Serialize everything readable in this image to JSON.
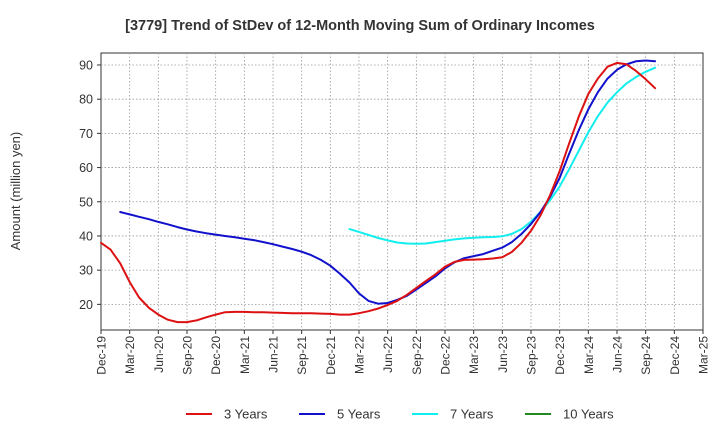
{
  "chart_data": {
    "type": "line",
    "title": "[3779]  Trend of StDev of 12-Month Moving Sum of Ordinary Incomes",
    "xlabel": "",
    "ylabel": "Amount (million yen)",
    "ylim": [
      12.5,
      93.5
    ],
    "yticks": [
      20,
      30,
      40,
      50,
      60,
      70,
      80,
      90
    ],
    "grid": true,
    "legend_position": "bottom",
    "x_categories": [
      "Dec-19",
      "Mar-20",
      "Jun-20",
      "Sep-20",
      "Dec-20",
      "Mar-21",
      "Jun-21",
      "Sep-21",
      "Dec-21",
      "Mar-22",
      "Jun-22",
      "Sep-22",
      "Dec-22",
      "Mar-23",
      "Jun-23",
      "Sep-23",
      "Dec-23",
      "Mar-24",
      "Jun-24",
      "Sep-24",
      "Dec-24",
      "Mar-25"
    ],
    "series": [
      {
        "name": "3 Years",
        "color": "#dd1111",
        "points": [
          [
            0,
            38
          ],
          [
            0.33,
            36
          ],
          [
            0.67,
            32
          ],
          [
            1,
            26.5
          ],
          [
            1.33,
            22
          ],
          [
            1.67,
            19
          ],
          [
            2,
            17
          ],
          [
            2.33,
            15.5
          ],
          [
            2.67,
            14.8
          ],
          [
            3,
            14.8
          ],
          [
            3.33,
            15.3
          ],
          [
            3.67,
            16.2
          ],
          [
            4,
            17
          ],
          [
            4.33,
            17.7
          ],
          [
            4.67,
            17.8
          ],
          [
            5,
            17.8
          ],
          [
            5.33,
            17.7
          ],
          [
            5.67,
            17.7
          ],
          [
            6,
            17.6
          ],
          [
            6.33,
            17.5
          ],
          [
            6.67,
            17.4
          ],
          [
            7,
            17.4
          ],
          [
            7.33,
            17.4
          ],
          [
            7.67,
            17.3
          ],
          [
            8,
            17.2
          ],
          [
            8.33,
            17.0
          ],
          [
            8.67,
            17.0
          ],
          [
            9,
            17.4
          ],
          [
            9.33,
            18.0
          ],
          [
            9.67,
            18.8
          ],
          [
            10,
            19.8
          ],
          [
            10.33,
            21
          ],
          [
            10.67,
            22.8
          ],
          [
            11,
            24.8
          ],
          [
            11.33,
            26.8
          ],
          [
            11.67,
            28.8
          ],
          [
            12,
            31
          ],
          [
            12.33,
            32.4
          ],
          [
            12.67,
            33
          ],
          [
            13,
            33.1
          ],
          [
            13.33,
            33.2
          ],
          [
            13.67,
            33.4
          ],
          [
            14,
            33.8
          ],
          [
            14.33,
            35.3
          ],
          [
            14.67,
            38
          ],
          [
            15,
            41.5
          ],
          [
            15.33,
            46
          ],
          [
            15.67,
            52
          ],
          [
            16,
            59
          ],
          [
            16.33,
            67
          ],
          [
            16.67,
            75
          ],
          [
            17,
            81.5
          ],
          [
            17.33,
            86
          ],
          [
            17.67,
            89.5
          ],
          [
            18,
            90.6
          ],
          [
            18.33,
            90.2
          ],
          [
            18.67,
            88.2
          ],
          [
            19,
            85.8
          ],
          [
            19.33,
            83.2
          ]
        ]
      },
      {
        "name": "5 Years",
        "color": "#1111cc",
        "points": [
          [
            0.67,
            47
          ],
          [
            1,
            46.3
          ],
          [
            1.33,
            45.6
          ],
          [
            1.67,
            44.9
          ],
          [
            2,
            44.1
          ],
          [
            2.33,
            43.4
          ],
          [
            2.67,
            42.6
          ],
          [
            3,
            41.9
          ],
          [
            3.33,
            41.3
          ],
          [
            3.67,
            40.8
          ],
          [
            4,
            40.4
          ],
          [
            4.33,
            40
          ],
          [
            4.67,
            39.6
          ],
          [
            5,
            39.2
          ],
          [
            5.33,
            38.8
          ],
          [
            5.67,
            38.2
          ],
          [
            6,
            37.6
          ],
          [
            6.33,
            36.9
          ],
          [
            6.67,
            36.2
          ],
          [
            7,
            35.4
          ],
          [
            7.33,
            34.4
          ],
          [
            7.67,
            33
          ],
          [
            8,
            31.3
          ],
          [
            8.33,
            29
          ],
          [
            8.67,
            26.4
          ],
          [
            9,
            23.2
          ],
          [
            9.33,
            21
          ],
          [
            9.67,
            20.2
          ],
          [
            10,
            20.4
          ],
          [
            10.33,
            21.3
          ],
          [
            10.67,
            22.5
          ],
          [
            11,
            24.3
          ],
          [
            11.33,
            26.2
          ],
          [
            11.67,
            28.2
          ],
          [
            12,
            30.5
          ],
          [
            12.33,
            32.3
          ],
          [
            12.67,
            33.5
          ],
          [
            13,
            34.1
          ],
          [
            13.33,
            34.7
          ],
          [
            13.67,
            35.7
          ],
          [
            14,
            36.6
          ],
          [
            14.33,
            38.2
          ],
          [
            14.67,
            40.6
          ],
          [
            15,
            43.5
          ],
          [
            15.33,
            47
          ],
          [
            15.67,
            51.5
          ],
          [
            16,
            57
          ],
          [
            16.33,
            64
          ],
          [
            16.67,
            71
          ],
          [
            17,
            77
          ],
          [
            17.33,
            82
          ],
          [
            17.67,
            86
          ],
          [
            18,
            88.6
          ],
          [
            18.33,
            90.2
          ],
          [
            18.67,
            91.1
          ],
          [
            19,
            91.3
          ],
          [
            19.33,
            91.1
          ]
        ]
      },
      {
        "name": "7 Years",
        "color": "#11eeee",
        "points": [
          [
            8.67,
            42
          ],
          [
            9,
            41.2
          ],
          [
            9.33,
            40.3
          ],
          [
            9.67,
            39.4
          ],
          [
            10,
            38.7
          ],
          [
            10.33,
            38.1
          ],
          [
            10.67,
            37.8
          ],
          [
            11,
            37.7
          ],
          [
            11.33,
            37.8
          ],
          [
            11.67,
            38.2
          ],
          [
            12,
            38.6
          ],
          [
            12.33,
            39
          ],
          [
            12.67,
            39.3
          ],
          [
            13,
            39.5
          ],
          [
            13.33,
            39.6
          ],
          [
            13.67,
            39.7
          ],
          [
            14,
            39.9
          ],
          [
            14.33,
            40.6
          ],
          [
            14.67,
            42
          ],
          [
            15,
            44.2
          ],
          [
            15.33,
            47
          ],
          [
            15.67,
            50.5
          ],
          [
            16,
            54.5
          ],
          [
            16.33,
            59.5
          ],
          [
            16.67,
            65
          ],
          [
            17,
            70.3
          ],
          [
            17.33,
            75
          ],
          [
            17.67,
            79
          ],
          [
            18,
            82
          ],
          [
            18.33,
            84.6
          ],
          [
            18.67,
            86.5
          ],
          [
            19,
            88
          ],
          [
            19.33,
            89.2
          ]
        ]
      },
      {
        "name": "10 Years",
        "color": "#228822",
        "points": []
      }
    ]
  }
}
